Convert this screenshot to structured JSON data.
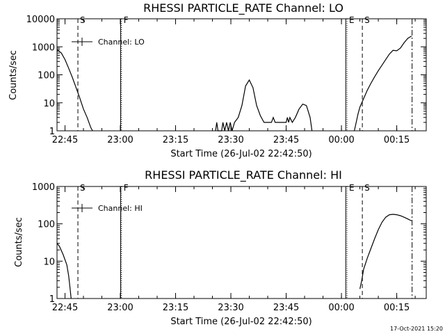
{
  "chart_data": [
    {
      "type": "line",
      "title": "RHESSI PARTICLE_RATE Channel: LO",
      "ylabel": "Counts/sec",
      "xlabel": "Start Time (26-Jul-02 22:42:50)",
      "y_scale": "log",
      "ylim": [
        1,
        10000
      ],
      "xlim": [
        "22:42:50",
        "00:23:00"
      ],
      "x_ticks": [
        "22:45",
        "23:00",
        "23:15",
        "23:30",
        "23:45",
        "00:00",
        "00:15"
      ],
      "y_ticks": [
        "1",
        "10",
        "100",
        "1000",
        "10000"
      ],
      "legend": {
        "label": "Channel: LO",
        "placement": "top-left"
      },
      "series": [
        {
          "name": "Channel: LO",
          "color": "#000000",
          "segments": [
            [
              [
                "22:42:50",
                800
              ],
              [
                "22:44:00",
                600
              ],
              [
                "22:45:00",
                350
              ],
              [
                "22:46:00",
                170
              ],
              [
                "22:47:00",
                80
              ],
              [
                "22:48:00",
                35
              ],
              [
                "22:49:00",
                15
              ],
              [
                "22:50:00",
                6
              ],
              [
                "22:51:00",
                3
              ],
              [
                "22:52:00",
                1.3
              ],
              [
                "22:52:30",
                1
              ]
            ],
            [
              [
                "23:25:50",
                1
              ],
              [
                "23:26:10",
                2
              ],
              [
                "23:26:30",
                1
              ],
              [
                "23:27:30",
                1
              ],
              [
                "23:27:50",
                2
              ],
              [
                "23:28:20",
                1
              ],
              [
                "23:28:50",
                2
              ],
              [
                "23:29:20",
                1
              ],
              [
                "23:29:50",
                2
              ],
              [
                "23:30:20",
                1
              ],
              [
                "23:31:00",
                2
              ],
              [
                "23:32:00",
                3
              ],
              [
                "23:33:00",
                8
              ],
              [
                "23:34:00",
                40
              ],
              [
                "23:35:00",
                65
              ],
              [
                "23:36:00",
                35
              ],
              [
                "23:37:00",
                8
              ],
              [
                "23:38:00",
                3.5
              ],
              [
                "23:39:00",
                2
              ],
              [
                "23:41:00",
                2
              ],
              [
                "23:41:30",
                3
              ],
              [
                "23:42:00",
                2
              ],
              [
                "23:45:00",
                2
              ],
              [
                "23:45:20",
                3
              ],
              [
                "23:45:40",
                2
              ],
              [
                "23:46:00",
                3
              ],
              [
                "23:46:40",
                2
              ],
              [
                "23:47:30",
                3
              ],
              [
                "23:48:30",
                6
              ],
              [
                "23:49:30",
                9
              ],
              [
                "23:50:30",
                8
              ],
              [
                "23:51:30",
                3
              ],
              [
                "23:52:00",
                1
              ]
            ],
            [
              [
                "00:03:30",
                1
              ],
              [
                "00:04:00",
                2
              ],
              [
                "00:04:30",
                4
              ],
              [
                "00:05:00",
                7
              ],
              [
                "00:06:00",
                14
              ],
              [
                "00:07:00",
                28
              ],
              [
                "00:08:00",
                50
              ],
              [
                "00:09:00",
                85
              ],
              [
                "00:10:00",
                140
              ],
              [
                "00:11:00",
                220
              ],
              [
                "00:12:00",
                350
              ],
              [
                "00:13:00",
                550
              ],
              [
                "00:14:00",
                750
              ],
              [
                "00:15:00",
                720
              ],
              [
                "00:16:00",
                900
              ],
              [
                "00:17:00",
                1400
              ],
              [
                "00:18:00",
                2000
              ],
              [
                "00:19:00",
                2400
              ]
            ]
          ]
        }
      ],
      "vlines": [
        {
          "label": "S",
          "time": "22:48:30",
          "style": "dashed"
        },
        {
          "label": "F",
          "time": "23:00:20",
          "style": "dotted"
        },
        {
          "label": "E",
          "time": "00:01:30",
          "style": "dotted"
        },
        {
          "label": "S",
          "time": "00:05:40",
          "style": "dashed"
        },
        {
          "label": "",
          "time": "00:19:10",
          "style": "dashdot"
        }
      ]
    },
    {
      "type": "line",
      "title": "RHESSI PARTICLE_RATE Channel: HI",
      "ylabel": "Counts/sec",
      "xlabel": "Start Time (26-Jul-02 22:42:50)",
      "y_scale": "log",
      "ylim": [
        1,
        1000
      ],
      "xlim": [
        "22:42:50",
        "00:23:00"
      ],
      "x_ticks": [
        "22:45",
        "23:00",
        "23:15",
        "23:30",
        "23:45",
        "00:00",
        "00:15"
      ],
      "y_ticks": [
        "1",
        "10",
        "100",
        "1000"
      ],
      "legend": {
        "label": "Channel: HI",
        "placement": "top-left"
      },
      "series": [
        {
          "name": "Channel: HI",
          "color": "#000000",
          "segments": [
            [
              [
                "22:42:50",
                30
              ],
              [
                "22:43:30",
                25
              ],
              [
                "22:44:30",
                15
              ],
              [
                "22:45:30",
                8
              ],
              [
                "22:46:00",
                4
              ],
              [
                "22:46:20",
                2
              ],
              [
                "22:46:40",
                1
              ]
            ],
            [
              [
                "00:05:00",
                1.8
              ],
              [
                "00:05:30",
                3
              ],
              [
                "00:06:00",
                6
              ],
              [
                "00:07:00",
                12
              ],
              [
                "00:08:00",
                22
              ],
              [
                "00:09:00",
                40
              ],
              [
                "00:10:00",
                70
              ],
              [
                "00:11:00",
                110
              ],
              [
                "00:12:00",
                150
              ],
              [
                "00:13:00",
                175
              ],
              [
                "00:14:00",
                180
              ],
              [
                "00:15:00",
                175
              ],
              [
                "00:16:00",
                165
              ],
              [
                "00:17:00",
                150
              ],
              [
                "00:18:00",
                135
              ],
              [
                "00:19:00",
                120
              ]
            ]
          ]
        }
      ],
      "vlines": [
        {
          "label": "S",
          "time": "22:48:30",
          "style": "dashed"
        },
        {
          "label": "F",
          "time": "23:00:20",
          "style": "dotted"
        },
        {
          "label": "E",
          "time": "00:01:30",
          "style": "dotted"
        },
        {
          "label": "S",
          "time": "00:05:40",
          "style": "dashed"
        },
        {
          "label": "",
          "time": "00:19:10",
          "style": "dashdot"
        }
      ]
    }
  ],
  "footer": {
    "stamp": "17-Oct-2021 15:20"
  }
}
